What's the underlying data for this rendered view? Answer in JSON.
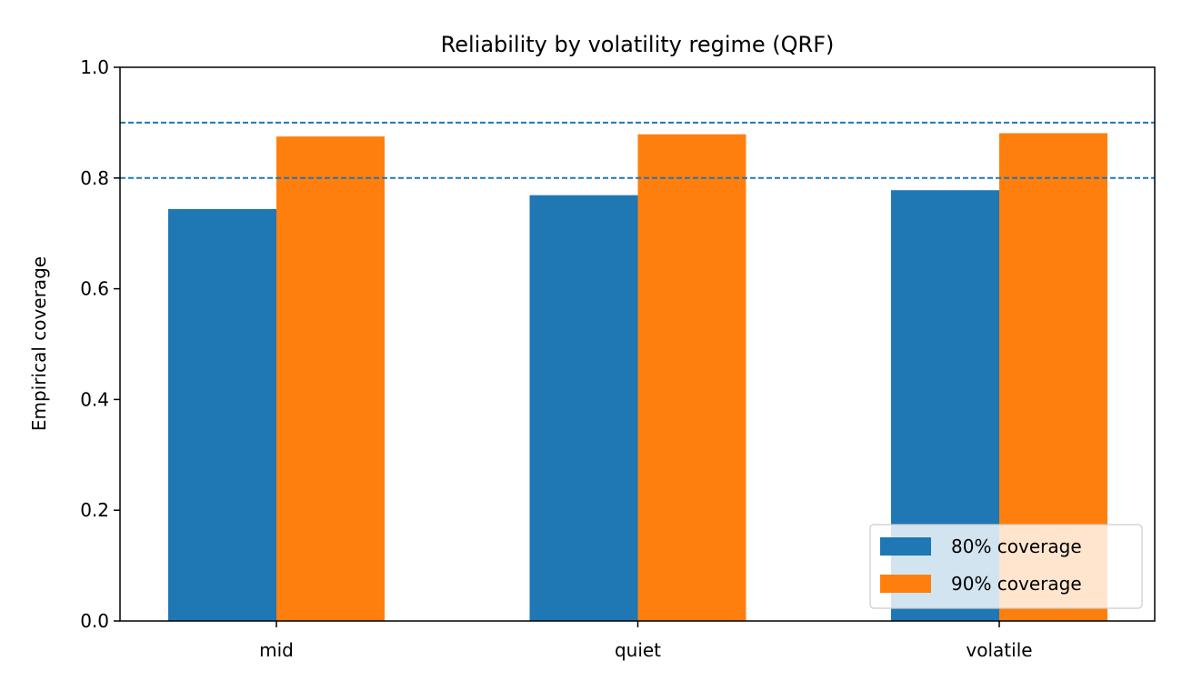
{
  "chart_data": {
    "type": "bar",
    "title": "Reliability by volatility regime (QRF)",
    "xlabel": "",
    "ylabel": "Empirical coverage",
    "categories": [
      "mid",
      "quiet",
      "volatile"
    ],
    "series": [
      {
        "name": "80% coverage",
        "values": [
          0.744,
          0.769,
          0.778
        ],
        "color": "#1f77b4"
      },
      {
        "name": "90% coverage",
        "values": [
          0.875,
          0.879,
          0.881
        ],
        "color": "#ff7f0e"
      }
    ],
    "reference_lines": [
      {
        "y": 0.8,
        "style": "dashed",
        "color": "#1f77b4"
      },
      {
        "y": 0.9,
        "style": "dashed",
        "color": "#1f77b4"
      }
    ],
    "ylim": [
      0,
      1.0
    ],
    "yticks": [
      "0.0",
      "0.2",
      "0.4",
      "0.6",
      "0.8",
      "1.0"
    ],
    "grid": false,
    "legend": "bottom-right"
  }
}
